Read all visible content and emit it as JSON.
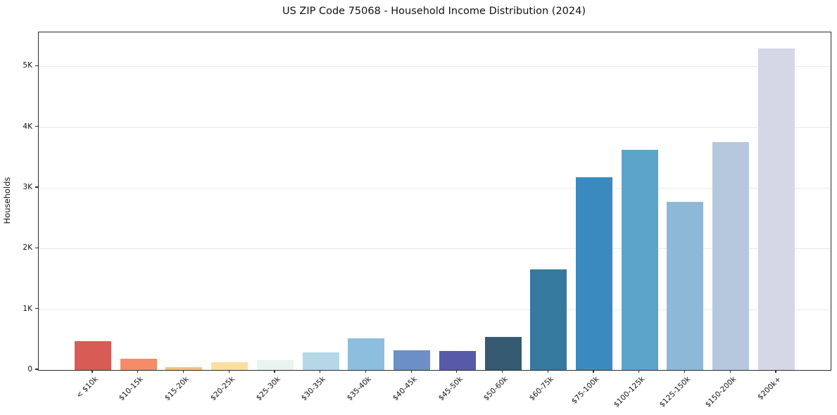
{
  "chart_data": {
    "type": "bar",
    "title": "US ZIP Code 75068 - Household Income Distribution (2024)",
    "xlabel": "",
    "ylabel": "Households",
    "categories": [
      "< $10k",
      "$10-15k",
      "$15-20k",
      "$20-25k",
      "$25-30k",
      "$30-35k",
      "$35-40k",
      "$40-45k",
      "$45-50k",
      "$50-60k",
      "$60-75k",
      "$75-100k",
      "$100-125k",
      "$125-150k",
      "$150-200k",
      "$200k+"
    ],
    "values": [
      470,
      180,
      50,
      130,
      160,
      295,
      525,
      330,
      315,
      540,
      1655,
      3175,
      3630,
      2765,
      3755,
      5290
    ],
    "bar_colors": [
      "#d85c55",
      "#f58b68",
      "#f5c07b",
      "#fbdfa0",
      "#e9f3ef",
      "#b5d7e8",
      "#8ebedd",
      "#6c8fc6",
      "#565aa9",
      "#365a71",
      "#36799f",
      "#3b8abf",
      "#5ca4ca",
      "#8eb8d8",
      "#b5c8de",
      "#d5d7e6"
    ],
    "yticks": [
      {
        "label": "0",
        "value": 0
      },
      {
        "label": "1K",
        "value": 1000
      },
      {
        "label": "2K",
        "value": 2000
      },
      {
        "label": "3K",
        "value": 3000
      },
      {
        "label": "4K",
        "value": 4000
      },
      {
        "label": "5K",
        "value": 5000
      }
    ],
    "ylim": [
      0,
      5558
    ],
    "grid": "horizontal",
    "gridline_color": "#e9e9e9",
    "spine_color": "#2b2b2b",
    "background_color": "#ffffff",
    "legend": "none"
  }
}
